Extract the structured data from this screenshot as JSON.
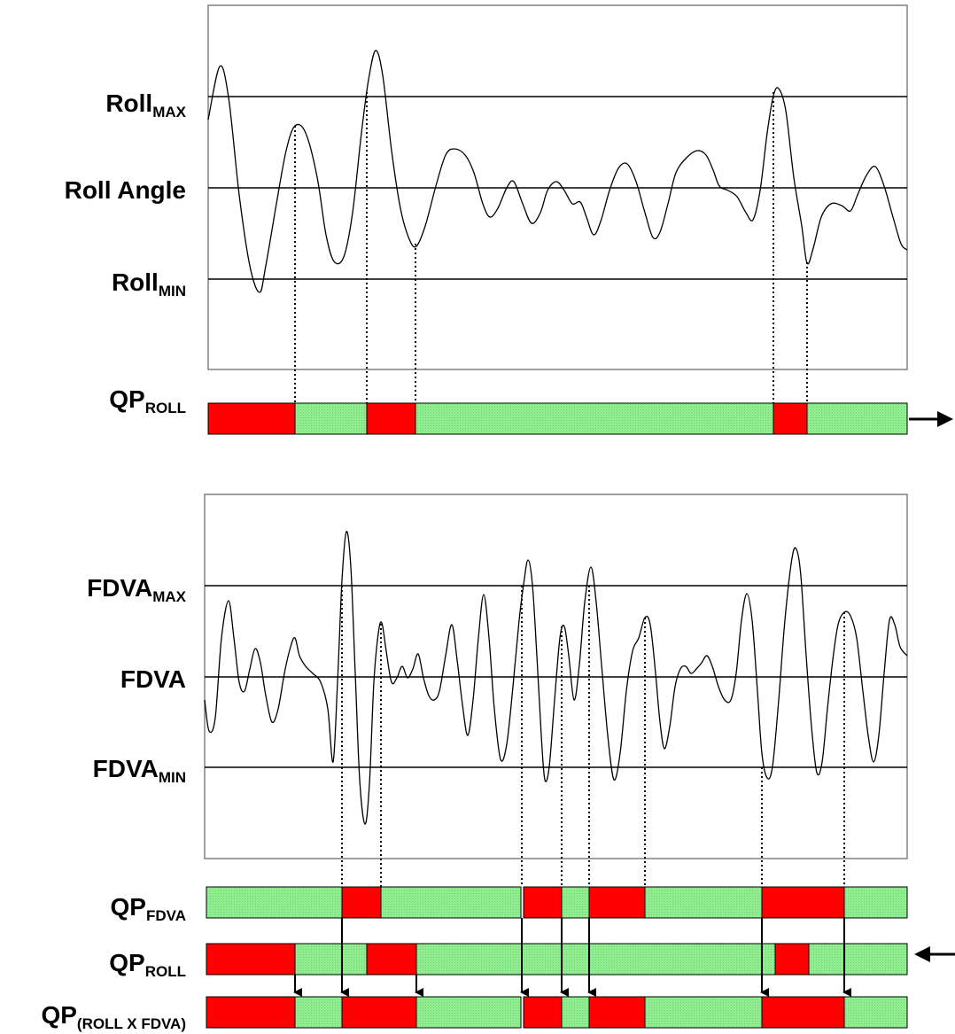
{
  "colors": {
    "red": "#ff0000",
    "green": "#90ee90",
    "line": "#000000",
    "frame": "#808080"
  },
  "roll_chart": {
    "labels": {
      "max": {
        "main": "Roll",
        "sub": "MAX"
      },
      "mid": {
        "main": "Roll Angle",
        "sub": ""
      },
      "min": {
        "main": "Roll",
        "sub": "MIN"
      }
    }
  },
  "fdva_chart": {
    "labels": {
      "max": {
        "main": "FDVA",
        "sub": "MAX"
      },
      "mid": {
        "main": "FDVA",
        "sub": ""
      },
      "min": {
        "main": "FDVA",
        "sub": "MIN"
      }
    }
  },
  "bars": {
    "qp_roll_top": {
      "main": "QP",
      "sub": "ROLL"
    },
    "qp_fdva": {
      "main": "QP",
      "sub": "FDVA"
    },
    "qp_roll_bottom": {
      "main": "QP",
      "sub": "ROLL"
    },
    "qp_combined": {
      "main": "QP",
      "sub": "(ROLL X FDVA)"
    }
  },
  "arrows": {
    "top_right": "arrow-right-icon",
    "bottom_right": "arrow-left-icon"
  }
}
